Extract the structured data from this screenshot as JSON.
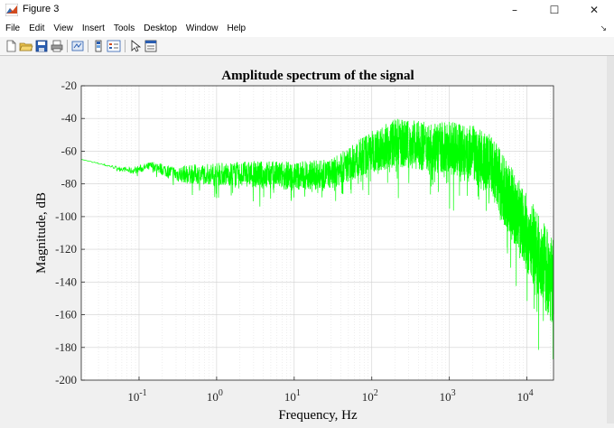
{
  "window": {
    "title": "Figure 3",
    "minimize": "–",
    "maximize": "☐",
    "close": "✕"
  },
  "menu": {
    "items": [
      "File",
      "Edit",
      "View",
      "Insert",
      "Tools",
      "Desktop",
      "Window",
      "Help"
    ],
    "dock_arrow": "↘"
  },
  "toolbar": {
    "buttons": [
      {
        "name": "new-figure-icon"
      },
      {
        "name": "open-file-icon"
      },
      {
        "name": "save-icon"
      },
      {
        "name": "print-icon"
      },
      {
        "name": "link-plot-icon"
      },
      {
        "name": "insert-colorbar-icon"
      },
      {
        "name": "insert-legend-icon"
      },
      {
        "name": "edit-plot-pointer-icon"
      },
      {
        "name": "property-inspector-icon"
      }
    ]
  },
  "chart_data": {
    "type": "line",
    "title": "Amplitude spectrum of the signal",
    "xlabel": "Frequency, Hz",
    "ylabel": "Magnitude, dB",
    "xscale": "log",
    "xlim": [
      0.018,
      22000
    ],
    "ylim": [
      -200,
      -20
    ],
    "yticks": [
      -20,
      -40,
      -60,
      -80,
      -100,
      -120,
      -140,
      -160,
      -180,
      -200
    ],
    "ytick_labels": [
      "-20",
      "-40",
      "-60",
      "-80",
      "-100",
      "-120",
      "-140",
      "-160",
      "-180",
      "-200"
    ],
    "xticks": [
      0.1,
      1,
      10,
      100,
      1000,
      10000
    ],
    "xtick_labels": [
      {
        "base": "10",
        "exp": "-1"
      },
      {
        "base": "10",
        "exp": "0"
      },
      {
        "base": "10",
        "exp": "1"
      },
      {
        "base": "10",
        "exp": "2"
      },
      {
        "base": "10",
        "exp": "3"
      },
      {
        "base": "10",
        "exp": "4"
      }
    ],
    "grid": true,
    "series": [
      {
        "color": "#00ff00",
        "envelope": [
          {
            "x": 0.018,
            "mid": -65,
            "spread": 0
          },
          {
            "x": 0.05,
            "mid": -70,
            "spread": 1
          },
          {
            "x": 0.08,
            "mid": -72,
            "spread": 2
          },
          {
            "x": 0.15,
            "mid": -69,
            "spread": 3
          },
          {
            "x": 0.3,
            "mid": -74,
            "spread": 5
          },
          {
            "x": 1,
            "mid": -74,
            "spread": 7
          },
          {
            "x": 3,
            "mid": -74,
            "spread": 8
          },
          {
            "x": 10,
            "mid": -75,
            "spread": 9
          },
          {
            "x": 30,
            "mid": -74,
            "spread": 9
          },
          {
            "x": 60,
            "mid": -66,
            "spread": 11
          },
          {
            "x": 100,
            "mid": -60,
            "spread": 13
          },
          {
            "x": 200,
            "mid": -55,
            "spread": 15
          },
          {
            "x": 500,
            "mid": -57,
            "spread": 15
          },
          {
            "x": 1000,
            "mid": -58,
            "spread": 16
          },
          {
            "x": 2000,
            "mid": -62,
            "spread": 18
          },
          {
            "x": 3500,
            "mid": -70,
            "spread": 20
          },
          {
            "x": 6000,
            "mid": -90,
            "spread": 22
          },
          {
            "x": 10000,
            "mid": -110,
            "spread": 24
          },
          {
            "x": 15000,
            "mid": -125,
            "spread": 26
          },
          {
            "x": 22000,
            "mid": -140,
            "spread": 28
          }
        ]
      }
    ]
  }
}
